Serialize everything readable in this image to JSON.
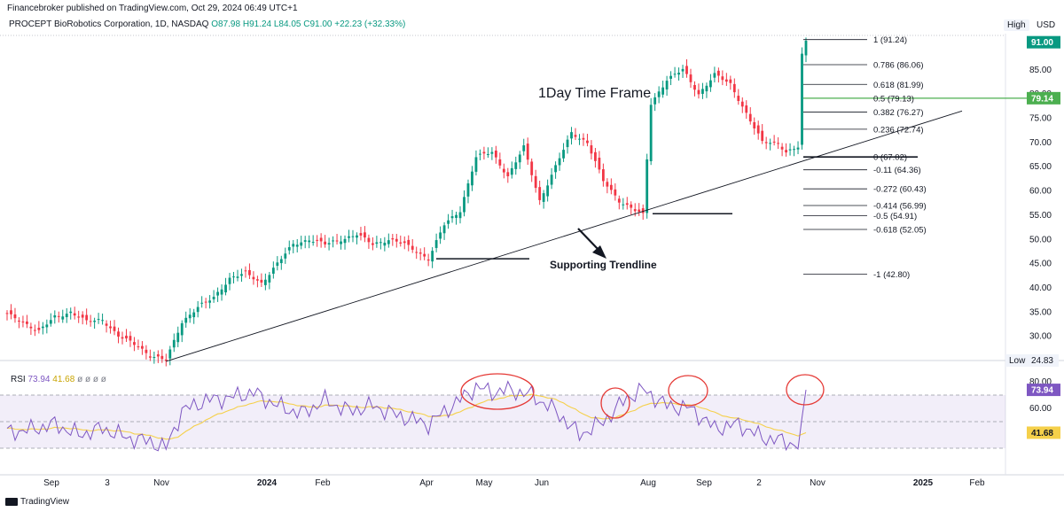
{
  "publisher": "Financebroker published on TradingView.com, Oct 29, 2024 06:49 UTC+1",
  "symbol": {
    "name": "PROCEPT BioRobotics Corporation, 1D, NASDAQ",
    "open": "O87.98",
    "high": "H91.24",
    "low": "L84.05",
    "close": "C91.00",
    "change": "+22.23 (+32.33%)"
  },
  "scale_mode": "High",
  "currency": "USD",
  "low_label": "Low",
  "low_value": "24.83",
  "footer": "TradingView",
  "annotations": {
    "timeframe": "1Day Time Frame",
    "trendline": "Supporting Trendline"
  },
  "rsi_legend": {
    "name": "RSI",
    "value": "73.94",
    "ma": "41.68",
    "dots": "ø ø ø ø"
  },
  "colors": {
    "up": "#089981",
    "down": "#f23645",
    "fib_line": "#4caf50",
    "rsi": "#7e57c2",
    "rsi_ma": "#f5d04a",
    "circle": "#e53935"
  },
  "chart_data": [
    {
      "type": "candlestick",
      "title": "PROCEPT BioRobotics Corporation, 1D, NASDAQ",
      "y_axis_ticks": [
        85,
        80,
        75,
        70,
        65,
        60,
        55,
        50,
        45,
        40,
        35,
        30
      ],
      "y_axis_labels": [
        "85.00",
        "80.00",
        "75.00",
        "70.00",
        "65.00",
        "60.00",
        "55.00",
        "50.00",
        "45.00",
        "40.00",
        "35.00",
        "30.00"
      ],
      "ylim": [
        24.83,
        91.24
      ],
      "x_axis_labels": [
        "Sep",
        "3",
        "Nov",
        "2024",
        "Feb",
        "Apr",
        "May",
        "Jun",
        "Aug",
        "Sep",
        "2",
        "Nov",
        "2025",
        "Feb"
      ],
      "price_labels": [
        {
          "value": "91.00",
          "color": "#089981"
        },
        {
          "value": "79.14",
          "color": "#4caf50"
        }
      ],
      "fibonacci": [
        {
          "level": "1",
          "price": 91.24,
          "label": "1 (91.24)"
        },
        {
          "level": "0.786",
          "price": 86.06,
          "label": "0.786 (86.06)"
        },
        {
          "level": "0.618",
          "price": 81.99,
          "label": "0.618 (81.99)"
        },
        {
          "level": "0.5",
          "price": 79.13,
          "label": "0.5 (79.13)"
        },
        {
          "level": "0.382",
          "price": 76.27,
          "label": "0.382 (76.27)"
        },
        {
          "level": "0.236",
          "price": 72.74,
          "label": "0.236 (72.74)"
        },
        {
          "level": "0",
          "price": 67.02,
          "label": "0 (67.02)"
        },
        {
          "level": "-0.11",
          "price": 64.36,
          "label": "-0.11 (64.36)"
        },
        {
          "level": "-0.272",
          "price": 60.43,
          "label": "-0.272 (60.43)"
        },
        {
          "level": "-0.414",
          "price": 56.99,
          "label": "-0.414 (56.99)"
        },
        {
          "level": "-0.5",
          "price": 54.91,
          "label": "-0.5 (54.91)"
        },
        {
          "level": "-0.618",
          "price": 52.05,
          "label": "-0.618 (52.05)"
        },
        {
          "level": "-1",
          "price": 42.8,
          "label": "-1 (42.80)"
        }
      ],
      "price_path": [
        [
          0,
          34.5
        ],
        [
          4,
          33
        ],
        [
          8,
          31
        ],
        [
          12,
          34
        ],
        [
          16,
          35
        ],
        [
          20,
          33
        ],
        [
          24,
          33.5
        ],
        [
          28,
          30
        ],
        [
          33,
          28
        ],
        [
          36,
          26
        ],
        [
          40,
          25
        ],
        [
          44,
          33
        ],
        [
          48,
          36
        ],
        [
          52,
          38
        ],
        [
          56,
          42
        ],
        [
          60,
          43
        ],
        [
          64,
          41
        ],
        [
          68,
          45
        ],
        [
          72,
          49
        ],
        [
          76,
          50
        ],
        [
          80,
          49
        ],
        [
          84,
          50
        ],
        [
          88,
          51
        ],
        [
          92,
          49
        ],
        [
          96,
          50
        ],
        [
          100,
          49
        ],
        [
          106,
          46
        ],
        [
          110,
          53
        ],
        [
          114,
          56
        ],
        [
          118,
          67
        ],
        [
          122,
          68
        ],
        [
          126,
          63
        ],
        [
          130,
          69
        ],
        [
          134,
          58
        ],
        [
          138,
          65
        ],
        [
          142,
          72
        ],
        [
          146,
          70
        ],
        [
          150,
          62
        ],
        [
          154,
          58
        ],
        [
          160,
          55
        ],
        [
          162,
          78
        ],
        [
          166,
          83
        ],
        [
          170,
          85
        ],
        [
          174,
          80
        ],
        [
          178,
          84
        ],
        [
          182,
          82
        ],
        [
          186,
          76
        ],
        [
          190,
          70
        ],
        [
          194,
          70
        ],
        [
          196,
          68
        ],
        [
          199,
          69
        ],
        [
          200,
          87.98
        ],
        [
          201,
          91
        ]
      ],
      "supporting_trendline": {
        "from": [
          40,
          24.83
        ],
        "to": [
          215,
          76.5
        ]
      },
      "horizontal_supports": [
        46,
        55.3,
        67.02
      ]
    },
    {
      "type": "line",
      "title": "RSI",
      "series": [
        {
          "name": "RSI",
          "last": 73.94
        },
        {
          "name": "RSI-based MA",
          "last": 41.68
        }
      ],
      "y_axis_labels": [
        "80.00",
        "60.00"
      ],
      "bands": [
        70,
        50,
        30
      ],
      "last_values": {
        "rsi": "73.94",
        "ma": "41.68"
      },
      "rsi_path": [
        [
          0,
          42
        ],
        [
          6,
          44
        ],
        [
          12,
          48
        ],
        [
          18,
          40
        ],
        [
          24,
          45
        ],
        [
          30,
          38
        ],
        [
          36,
          35
        ],
        [
          40,
          30
        ],
        [
          44,
          58
        ],
        [
          50,
          66
        ],
        [
          56,
          68
        ],
        [
          62,
          72
        ],
        [
          68,
          62
        ],
        [
          74,
          56
        ],
        [
          80,
          66
        ],
        [
          86,
          58
        ],
        [
          92,
          62
        ],
        [
          98,
          55
        ],
        [
          106,
          48
        ],
        [
          112,
          62
        ],
        [
          118,
          76
        ],
        [
          122,
          72
        ],
        [
          126,
          74
        ],
        [
          132,
          70
        ],
        [
          138,
          58
        ],
        [
          144,
          40
        ],
        [
          150,
          50
        ],
        [
          156,
          68
        ],
        [
          160,
          74
        ],
        [
          166,
          62
        ],
        [
          172,
          60
        ],
        [
          178,
          45
        ],
        [
          184,
          48
        ],
        [
          190,
          38
        ],
        [
          196,
          35
        ],
        [
          199,
          32
        ],
        [
          201,
          73.94
        ]
      ]
    }
  ]
}
